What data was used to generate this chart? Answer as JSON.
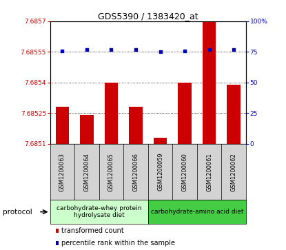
{
  "title": "GDS5390 / 1383420_at",
  "samples": [
    "GSM1200063",
    "GSM1200064",
    "GSM1200065",
    "GSM1200066",
    "GSM1200059",
    "GSM1200060",
    "GSM1200061",
    "GSM1200062"
  ],
  "red_values": [
    7.68528,
    7.68524,
    7.6854,
    7.68528,
    7.68513,
    7.6854,
    7.6857,
    7.68539
  ],
  "blue_values": [
    76,
    77,
    77,
    77,
    75,
    76,
    77,
    77
  ],
  "ylim_left": [
    7.6851,
    7.6857
  ],
  "ylim_right": [
    0,
    100
  ],
  "yticks_left": [
    7.6851,
    7.68525,
    7.6854,
    7.68555,
    7.6857
  ],
  "yticks_right": [
    0,
    25,
    50,
    75,
    100
  ],
  "ytick_labels_left": [
    "7.6851",
    "7.68525",
    "7.6854",
    "7.68555",
    "7.6857"
  ],
  "ytick_labels_right": [
    "0",
    "25",
    "50",
    "75",
    "100%"
  ],
  "protocol_groups": [
    {
      "label": "carbohydrate-whey protein\nhydrolysate diet",
      "indices": [
        0,
        1,
        2,
        3
      ],
      "color": "#ccffcc"
    },
    {
      "label": "carbohydrate-amino acid diet",
      "indices": [
        4,
        5,
        6,
        7
      ],
      "color": "#44cc44"
    }
  ],
  "bar_color": "#cc0000",
  "dot_color": "#0000bb",
  "bg_color": "#d3d3d3",
  "protocol_label": "protocol",
  "legend_items": [
    {
      "color": "#cc0000",
      "label": "transformed count"
    },
    {
      "color": "#0000bb",
      "label": "percentile rank within the sample"
    }
  ]
}
